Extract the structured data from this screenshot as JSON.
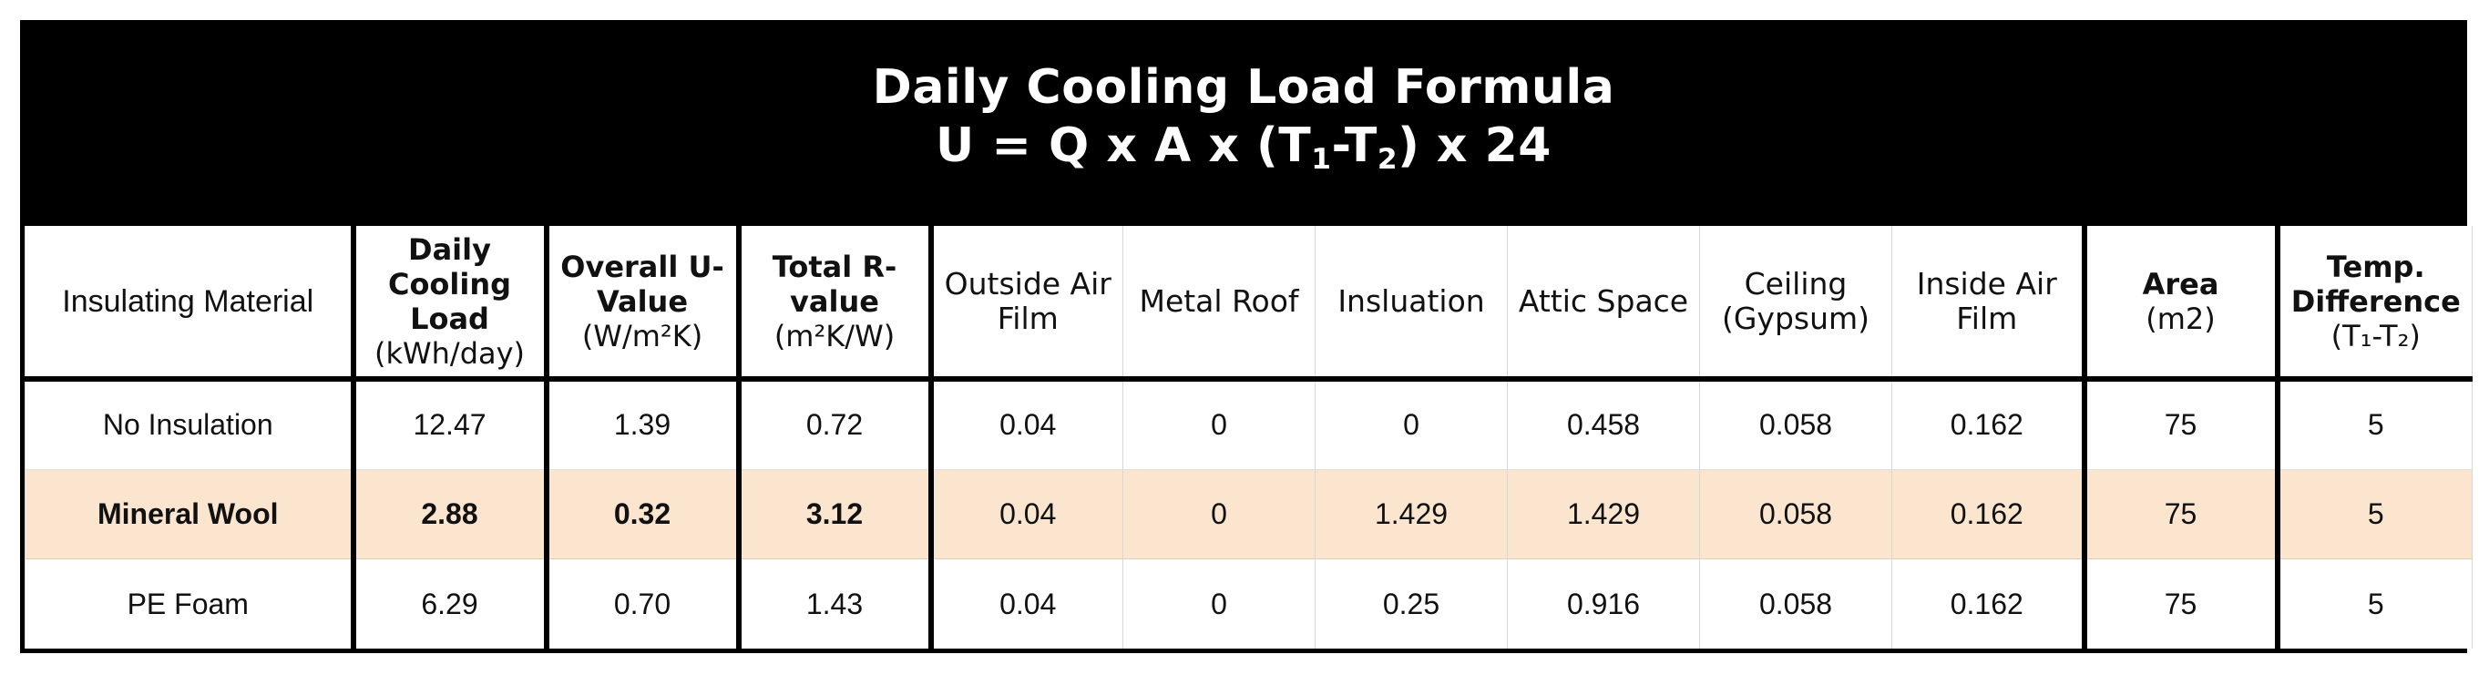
{
  "title": {
    "line1": "Daily Cooling Load Formula",
    "line2_prefix": "U = Q x A x (T",
    "line2_sub1": "1",
    "line2_mid": "-T",
    "line2_sub2": "2",
    "line2_suffix": ") x 24"
  },
  "headers": {
    "material": "Insulating Material",
    "daily_bold": "Daily Cooling Load",
    "daily_unit": "(kWh/day)",
    "uvalue_bold": "Overall U-Value",
    "uvalue_unit": "(W/m²K)",
    "rvalue_bold": "Total R-value",
    "rvalue_unit": "(m²K/W)",
    "outside_air": "Outside Air Film",
    "metal_roof": "Metal Roof",
    "insulation": "Insluation",
    "attic": "Attic Space",
    "ceiling": "Ceiling (Gypsum)",
    "inside_air": "Inside Air Film",
    "area_bold": "Area",
    "area_unit": "(m2)",
    "temp_bold": "Temp. Difference",
    "temp_unit": "(T₁-T₂)"
  },
  "rows": [
    {
      "material": "No Insulation",
      "daily": "12.47",
      "uvalue": "1.39",
      "rvalue": "0.72",
      "outside_air": "0.04",
      "metal_roof": "0",
      "insulation": "0",
      "attic": "0.458",
      "ceiling": "0.058",
      "inside_air": "0.162",
      "area": "75",
      "temp": "5"
    },
    {
      "material": "Mineral Wool",
      "daily": "2.88",
      "uvalue": "0.32",
      "rvalue": "3.12",
      "outside_air": "0.04",
      "metal_roof": "0",
      "insulation": "1.429",
      "attic": "1.429",
      "ceiling": "0.058",
      "inside_air": "0.162",
      "area": "75",
      "temp": "5"
    },
    {
      "material": "PE Foam",
      "daily": "6.29",
      "uvalue": "0.70",
      "rvalue": "1.43",
      "outside_air": "0.04",
      "metal_roof": "0",
      "insulation": "0.25",
      "attic": "0.916",
      "ceiling": "0.058",
      "inside_air": "0.162",
      "area": "75",
      "temp": "5"
    }
  ],
  "colors": {
    "highlight_row": "#fbe5cf",
    "frame": "#000000"
  }
}
